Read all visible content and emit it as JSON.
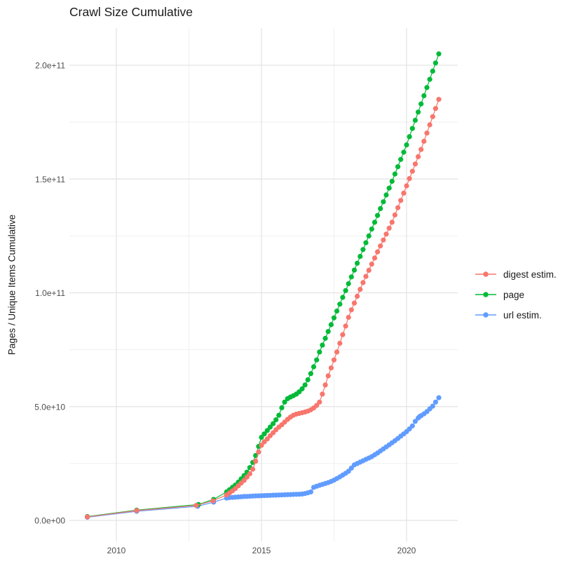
{
  "figure": {
    "title": "Crawl Size Cumulative"
  },
  "axes": {
    "y_title": "Pages / Unique Items Cumulative",
    "y_ticks": [
      {
        "value": 0,
        "label": "0.0e+00"
      },
      {
        "value": 50000000000.0,
        "label": "5.0e+10"
      },
      {
        "value": 100000000000.0,
        "label": "1.0e+11"
      },
      {
        "value": 150000000000.0,
        "label": "1.5e+11"
      },
      {
        "value": 200000000000.0,
        "label": "2.0e+11"
      }
    ],
    "y_minor": [
      25000000000.0,
      75000000000.0,
      125000000000.0,
      175000000000.0
    ],
    "x_ticks": [
      {
        "value": 2010,
        "label": "2010"
      },
      {
        "value": 2015,
        "label": "2015"
      },
      {
        "value": 2020,
        "label": "2020"
      }
    ],
    "x_minor": [
      2012.5,
      2017.5
    ]
  },
  "chart_data": {
    "type": "line",
    "title": "Crawl Size Cumulative",
    "xlabel": "",
    "ylabel": "Pages / Unique Items Cumulative",
    "xlim": [
      2008.5,
      2021.8
    ],
    "ylim": [
      0,
      215000000000.0
    ],
    "grid": true,
    "legend_position": "right",
    "marker": "point",
    "draw_order": [
      "url estim.",
      "page",
      "digest estim."
    ],
    "series": [
      {
        "name": "digest estim.",
        "color": "#F8766D",
        "points": [
          [
            2009.0,
            1550000000.0
          ],
          [
            2010.7,
            4300000000.0
          ],
          [
            2012.75,
            6550000000.0
          ],
          [
            2013.33,
            8600000000.0
          ],
          [
            2013.8,
            11200000000.0
          ],
          [
            2013.9,
            12100000000.0
          ],
          [
            2014.0,
            13000000000.0
          ],
          [
            2014.1,
            14000000000.0
          ],
          [
            2014.2,
            15200000000.0
          ],
          [
            2014.3,
            16400000000.0
          ],
          [
            2014.4,
            17600000000.0
          ],
          [
            2014.5,
            19000000000.0
          ],
          [
            2014.6,
            20500000000.0
          ],
          [
            2014.7,
            22500000000.0
          ],
          [
            2014.8,
            26000000000.0
          ],
          [
            2014.9,
            30000000000.0
          ],
          [
            2015.0,
            33000000000.0
          ],
          [
            2015.1,
            34500000000.0
          ],
          [
            2015.2,
            35800000000.0
          ],
          [
            2015.3,
            37200000000.0
          ],
          [
            2015.4,
            38500000000.0
          ],
          [
            2015.5,
            39800000000.0
          ],
          [
            2015.6,
            41000000000.0
          ],
          [
            2015.7,
            42000000000.0
          ],
          [
            2015.8,
            43200000000.0
          ],
          [
            2015.9,
            44400000000.0
          ],
          [
            2016.0,
            45400000000.0
          ],
          [
            2016.1,
            46200000000.0
          ],
          [
            2016.2,
            46700000000.0
          ],
          [
            2016.3,
            47000000000.0
          ],
          [
            2016.4,
            47300000000.0
          ],
          [
            2016.5,
            47600000000.0
          ],
          [
            2016.6,
            48000000000.0
          ],
          [
            2016.7,
            48600000000.0
          ],
          [
            2016.8,
            49400000000.0
          ],
          [
            2016.9,
            50500000000.0
          ],
          [
            2017.0,
            52000000000.0
          ],
          [
            2017.1,
            55500000000.0
          ],
          [
            2017.2,
            59500000000.0
          ],
          [
            2017.3,
            63500000000.0
          ],
          [
            2017.4,
            67000000000.0
          ],
          [
            2017.5,
            70500000000.0
          ],
          [
            2017.6,
            74000000000.0
          ],
          [
            2017.7,
            77800000000.0
          ],
          [
            2017.8,
            81600000000.0
          ],
          [
            2017.9,
            85400000000.0
          ],
          [
            2018.0,
            89200000000.0
          ],
          [
            2018.1,
            92500000000.0
          ],
          [
            2018.2,
            95500000000.0
          ],
          [
            2018.3,
            98500000000.0
          ],
          [
            2018.4,
            101500000000.0
          ],
          [
            2018.5,
            104500000000.0
          ],
          [
            2018.6,
            107200000000.0
          ],
          [
            2018.7,
            109900000000.0
          ],
          [
            2018.8,
            112600000000.0
          ],
          [
            2018.9,
            115300000000.0
          ],
          [
            2019.0,
            118000000000.0
          ],
          [
            2019.1,
            120600000000.0
          ],
          [
            2019.2,
            123200000000.0
          ],
          [
            2019.3,
            125800000000.0
          ],
          [
            2019.4,
            128400000000.0
          ],
          [
            2019.5,
            131000000000.0
          ],
          [
            2019.6,
            134200000000.0
          ],
          [
            2019.7,
            137400000000.0
          ],
          [
            2019.8,
            140600000000.0
          ],
          [
            2019.9,
            143800000000.0
          ],
          [
            2020.0,
            147000000000.0
          ],
          [
            2020.1,
            150200000000.0
          ],
          [
            2020.2,
            153400000000.0
          ],
          [
            2020.3,
            156600000000.0
          ],
          [
            2020.4,
            159800000000.0
          ],
          [
            2020.5,
            163000000000.0
          ],
          [
            2020.6,
            166600000000.0
          ],
          [
            2020.7,
            170200000000.0
          ],
          [
            2020.8,
            173800000000.0
          ],
          [
            2020.9,
            177400000000.0
          ],
          [
            2021.0,
            181000000000.0
          ],
          [
            2021.11,
            185000000000.0
          ]
        ]
      },
      {
        "name": "page",
        "color": "#00BA38",
        "points": [
          [
            2009.0,
            1700000000.0
          ],
          [
            2010.7,
            4500000000.0
          ],
          [
            2012.83,
            7000000000.0
          ],
          [
            2013.35,
            9200000000.0
          ],
          [
            2013.8,
            12500000000.0
          ],
          [
            2013.9,
            13500000000.0
          ],
          [
            2014.0,
            14500000000.0
          ],
          [
            2014.1,
            15500000000.0
          ],
          [
            2014.2,
            16800000000.0
          ],
          [
            2014.3,
            18200000000.0
          ],
          [
            2014.4,
            19700000000.0
          ],
          [
            2014.5,
            21200000000.0
          ],
          [
            2014.6,
            23200000000.0
          ],
          [
            2014.7,
            25500000000.0
          ],
          [
            2014.8,
            28500000000.0
          ],
          [
            2014.9,
            32500000000.0
          ],
          [
            2015.0,
            36500000000.0
          ],
          [
            2015.1,
            38000000000.0
          ],
          [
            2015.2,
            39500000000.0
          ],
          [
            2015.3,
            41000000000.0
          ],
          [
            2015.4,
            42500000000.0
          ],
          [
            2015.5,
            44200000000.0
          ],
          [
            2015.6,
            46200000000.0
          ],
          [
            2015.7,
            49500000000.0
          ],
          [
            2015.8,
            52000000000.0
          ],
          [
            2015.9,
            53500000000.0
          ],
          [
            2016.0,
            54200000000.0
          ],
          [
            2016.1,
            54800000000.0
          ],
          [
            2016.2,
            55500000000.0
          ],
          [
            2016.3,
            56500000000.0
          ],
          [
            2016.4,
            57800000000.0
          ],
          [
            2016.5,
            59500000000.0
          ],
          [
            2016.6,
            61800000000.0
          ],
          [
            2016.7,
            64500000000.0
          ],
          [
            2016.8,
            67500000000.0
          ],
          [
            2016.9,
            70500000000.0
          ],
          [
            2017.0,
            74000000000.0
          ],
          [
            2017.1,
            77000000000.0
          ],
          [
            2017.2,
            80000000000.0
          ],
          [
            2017.3,
            83000000000.0
          ],
          [
            2017.4,
            86000000000.0
          ],
          [
            2017.5,
            89000000000.0
          ],
          [
            2017.6,
            92000000000.0
          ],
          [
            2017.7,
            95000000000.0
          ],
          [
            2017.8,
            98000000000.0
          ],
          [
            2017.9,
            101000000000.0
          ],
          [
            2018.0,
            104000000000.0
          ],
          [
            2018.1,
            107000000000.0
          ],
          [
            2018.2,
            110000000000.0
          ],
          [
            2018.3,
            113000000000.0
          ],
          [
            2018.4,
            116000000000.0
          ],
          [
            2018.5,
            119000000000.0
          ],
          [
            2018.6,
            122000000000.0
          ],
          [
            2018.7,
            125000000000.0
          ],
          [
            2018.8,
            128000000000.0
          ],
          [
            2018.9,
            131000000000.0
          ],
          [
            2019.0,
            134000000000.0
          ],
          [
            2019.1,
            137000000000.0
          ],
          [
            2019.2,
            140000000000.0
          ],
          [
            2019.3,
            143000000000.0
          ],
          [
            2019.4,
            146000000000.0
          ],
          [
            2019.5,
            149000000000.0
          ],
          [
            2019.6,
            152200000000.0
          ],
          [
            2019.7,
            155400000000.0
          ],
          [
            2019.8,
            158600000000.0
          ],
          [
            2019.9,
            161800000000.0
          ],
          [
            2020.0,
            165000000000.0
          ],
          [
            2020.1,
            168600000000.0
          ],
          [
            2020.2,
            172200000000.0
          ],
          [
            2020.3,
            175800000000.0
          ],
          [
            2020.4,
            179400000000.0
          ],
          [
            2020.5,
            183000000000.0
          ],
          [
            2020.6,
            186600000000.0
          ],
          [
            2020.7,
            190200000000.0
          ],
          [
            2020.8,
            193800000000.0
          ],
          [
            2020.9,
            197400000000.0
          ],
          [
            2021.0,
            201000000000.0
          ],
          [
            2021.11,
            205000000000.0
          ]
        ]
      },
      {
        "name": "url estim.",
        "color": "#619CFF",
        "points": [
          [
            2009.0,
            1400000000.0
          ],
          [
            2010.7,
            4000000000.0
          ],
          [
            2012.8,
            6200000000.0
          ],
          [
            2013.35,
            8000000000.0
          ],
          [
            2013.8,
            9800000000.0
          ],
          [
            2013.9,
            10000000000.0
          ],
          [
            2014.0,
            10100000000.0
          ],
          [
            2014.1,
            10200000000.0
          ],
          [
            2014.2,
            10300000000.0
          ],
          [
            2014.3,
            10400000000.0
          ],
          [
            2014.4,
            10500000000.0
          ],
          [
            2014.5,
            10550000000.0
          ],
          [
            2014.6,
            10600000000.0
          ],
          [
            2014.7,
            10700000000.0
          ],
          [
            2014.8,
            10750000000.0
          ],
          [
            2014.9,
            10800000000.0
          ],
          [
            2015.0,
            10850000000.0
          ],
          [
            2015.1,
            10900000000.0
          ],
          [
            2015.2,
            10950000000.0
          ],
          [
            2015.3,
            11000000000.0
          ],
          [
            2015.4,
            11050000000.0
          ],
          [
            2015.5,
            11100000000.0
          ],
          [
            2015.6,
            11150000000.0
          ],
          [
            2015.7,
            11200000000.0
          ],
          [
            2015.8,
            11250000000.0
          ],
          [
            2015.9,
            11300000000.0
          ],
          [
            2016.0,
            11350000000.0
          ],
          [
            2016.1,
            11400000000.0
          ],
          [
            2016.2,
            11450000000.0
          ],
          [
            2016.3,
            11500000000.0
          ],
          [
            2016.4,
            11600000000.0
          ],
          [
            2016.5,
            11800000000.0
          ],
          [
            2016.6,
            12100000000.0
          ],
          [
            2016.7,
            12500000000.0
          ],
          [
            2016.8,
            14500000000.0
          ],
          [
            2016.9,
            15000000000.0
          ],
          [
            2017.0,
            15400000000.0
          ],
          [
            2017.1,
            15800000000.0
          ],
          [
            2017.2,
            16200000000.0
          ],
          [
            2017.3,
            16600000000.0
          ],
          [
            2017.4,
            17100000000.0
          ],
          [
            2017.5,
            17700000000.0
          ],
          [
            2017.6,
            18400000000.0
          ],
          [
            2017.7,
            19100000000.0
          ],
          [
            2017.8,
            19900000000.0
          ],
          [
            2017.9,
            20700000000.0
          ],
          [
            2018.0,
            21600000000.0
          ],
          [
            2018.1,
            23000000000.0
          ],
          [
            2018.2,
            24400000000.0
          ],
          [
            2018.3,
            25000000000.0
          ],
          [
            2018.4,
            25600000000.0
          ],
          [
            2018.5,
            26200000000.0
          ],
          [
            2018.6,
            26800000000.0
          ],
          [
            2018.7,
            27400000000.0
          ],
          [
            2018.8,
            28000000000.0
          ],
          [
            2018.9,
            28800000000.0
          ],
          [
            2019.0,
            29600000000.0
          ],
          [
            2019.1,
            30500000000.0
          ],
          [
            2019.2,
            31400000000.0
          ],
          [
            2019.3,
            32300000000.0
          ],
          [
            2019.4,
            33200000000.0
          ],
          [
            2019.5,
            34100000000.0
          ],
          [
            2019.6,
            35000000000.0
          ],
          [
            2019.7,
            36000000000.0
          ],
          [
            2019.8,
            37000000000.0
          ],
          [
            2019.9,
            38000000000.0
          ],
          [
            2020.0,
            39000000000.0
          ],
          [
            2020.1,
            40200000000.0
          ],
          [
            2020.2,
            41500000000.0
          ],
          [
            2020.3,
            43500000000.0
          ],
          [
            2020.4,
            45000000000.0
          ],
          [
            2020.45,
            45600000000.0
          ],
          [
            2020.5,
            46000000000.0
          ],
          [
            2020.6,
            46800000000.0
          ],
          [
            2020.7,
            47800000000.0
          ],
          [
            2020.8,
            49000000000.0
          ],
          [
            2020.9,
            50200000000.0
          ],
          [
            2021.0,
            52000000000.0
          ],
          [
            2021.11,
            53900000000.0
          ]
        ]
      }
    ]
  }
}
